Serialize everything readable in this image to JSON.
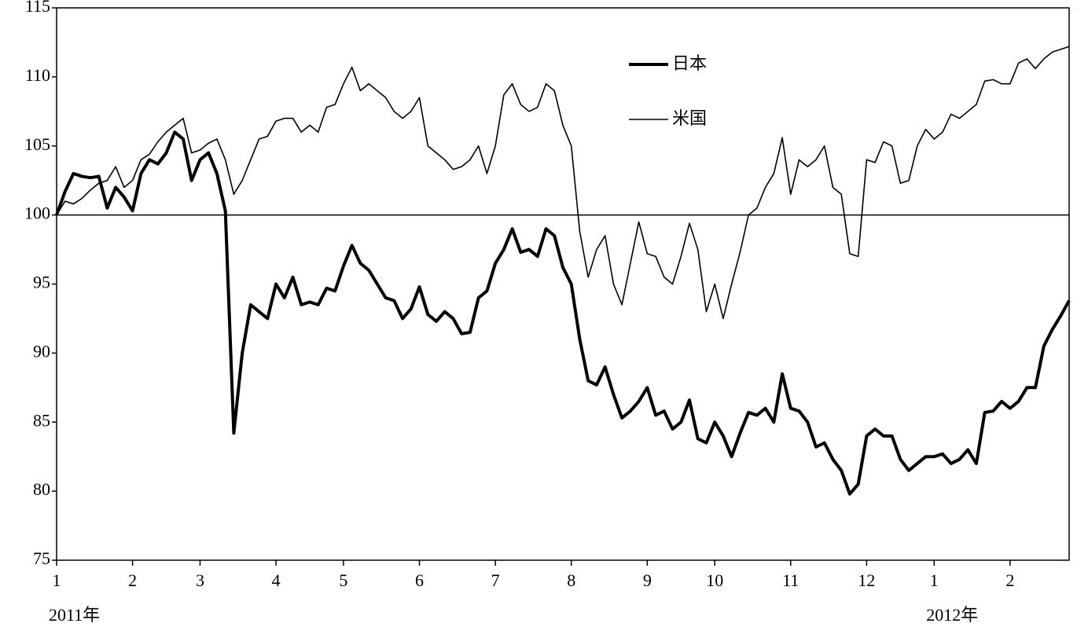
{
  "chart_data": {
    "type": "line",
    "categories": [
      "1",
      null,
      null,
      null,
      null,
      null,
      null,
      null,
      null,
      "2",
      null,
      null,
      null,
      null,
      null,
      null,
      null,
      "3",
      null,
      null,
      null,
      null,
      null,
      null,
      null,
      null,
      "4",
      null,
      null,
      null,
      null,
      null,
      null,
      null,
      "5",
      null,
      null,
      null,
      null,
      null,
      null,
      null,
      null,
      "6",
      null,
      null,
      null,
      null,
      null,
      null,
      null,
      null,
      "7",
      null,
      null,
      null,
      null,
      null,
      null,
      null,
      null,
      "8",
      null,
      null,
      null,
      null,
      null,
      null,
      null,
      null,
      "9",
      null,
      null,
      null,
      null,
      null,
      null,
      null,
      "10",
      null,
      null,
      null,
      null,
      null,
      null,
      null,
      null,
      "11",
      null,
      null,
      null,
      null,
      null,
      null,
      null,
      null,
      "12",
      null,
      null,
      null,
      null,
      null,
      null,
      null,
      "1",
      null,
      null,
      null,
      null,
      null,
      null,
      null,
      null,
      "2",
      null,
      null,
      null,
      null,
      null,
      null,
      null
    ],
    "year_labels": [
      "2011年",
      "2012年"
    ],
    "series": [
      {
        "name": "日本",
        "color": "#000000",
        "width": 4,
        "values": [
          100,
          101.7,
          103,
          102.8,
          102.7,
          102.8,
          100.5,
          102,
          101.3,
          100.3,
          103,
          104,
          103.7,
          104.5,
          106,
          105.5,
          102.5,
          104,
          104.5,
          103,
          100.3,
          84.2,
          90,
          93.5,
          93,
          92.5,
          95,
          94,
          95.5,
          93.5,
          93.7,
          93.5,
          94.7,
          94.5,
          96.3,
          97.8,
          96.5,
          96,
          95,
          94,
          93.8,
          92.5,
          93.2,
          94.8,
          92.8,
          92.3,
          93,
          92.5,
          91.4,
          91.5,
          94,
          94.5,
          96.5,
          97.5,
          99,
          97.3,
          97.5,
          97,
          99,
          98.5,
          96.2,
          95,
          91,
          88,
          87.7,
          89,
          87,
          85.3,
          85.8,
          86.5,
          87.5,
          85.5,
          85.8,
          84.5,
          85,
          86.6,
          83.8,
          83.5,
          85,
          84,
          82.5,
          84.2,
          85.7,
          85.5,
          86,
          85,
          88.5,
          86,
          85.8,
          85,
          83.2,
          83.5,
          82.3,
          81.5,
          79.8,
          80.5,
          84,
          84.5,
          84,
          84,
          82.3,
          81.5,
          82,
          82.5,
          82.5,
          82.7,
          82,
          82.3,
          83,
          82,
          85.7,
          85.8,
          86.5,
          86,
          86.5,
          87.5,
          87.5,
          90.5,
          91.7,
          92.7,
          93.8
        ]
      },
      {
        "name": "米国",
        "color": "#000000",
        "width": 1.6,
        "values": [
          100,
          101,
          100.8,
          101.2,
          101.8,
          102.3,
          102.5,
          103.5,
          102,
          102.5,
          104,
          104.4,
          105.3,
          106,
          106.5,
          107,
          104.5,
          104.7,
          105.2,
          105.5,
          104,
          101.5,
          102.5,
          104,
          105.5,
          105.7,
          106.8,
          107,
          107,
          106,
          106.5,
          106,
          107.8,
          108,
          109.5,
          110.7,
          109,
          109.5,
          109,
          108.5,
          107.5,
          107,
          107.5,
          108.5,
          105,
          104.5,
          104,
          103.3,
          103.5,
          104,
          105,
          103,
          105,
          108.7,
          109.5,
          108,
          107.5,
          107.8,
          109.5,
          109,
          106.5,
          105,
          98.8,
          95.5,
          97.5,
          98.5,
          95,
          93.5,
          96.5,
          99.5,
          97.2,
          97,
          95.5,
          95,
          97,
          99.4,
          97.5,
          93,
          95,
          92.5,
          95,
          97.3,
          100,
          100.5,
          102,
          103,
          105.6,
          101.5,
          104,
          103.5,
          104,
          105,
          102,
          101.5,
          97.2,
          97,
          104,
          103.8,
          105.3,
          105,
          102.3,
          102.5,
          105,
          106.2,
          105.5,
          106,
          107.3,
          107,
          107.5,
          108,
          109.7,
          109.8,
          109.5,
          109.5,
          111,
          111.3,
          110.6,
          111.3,
          111.8,
          112,
          112.2
        ]
      }
    ],
    "ylim": [
      75,
      115
    ],
    "yticks": [
      75,
      80,
      85,
      90,
      95,
      100,
      105,
      110,
      115
    ],
    "reference_line": 100,
    "grid": false,
    "legend": "top-center"
  }
}
